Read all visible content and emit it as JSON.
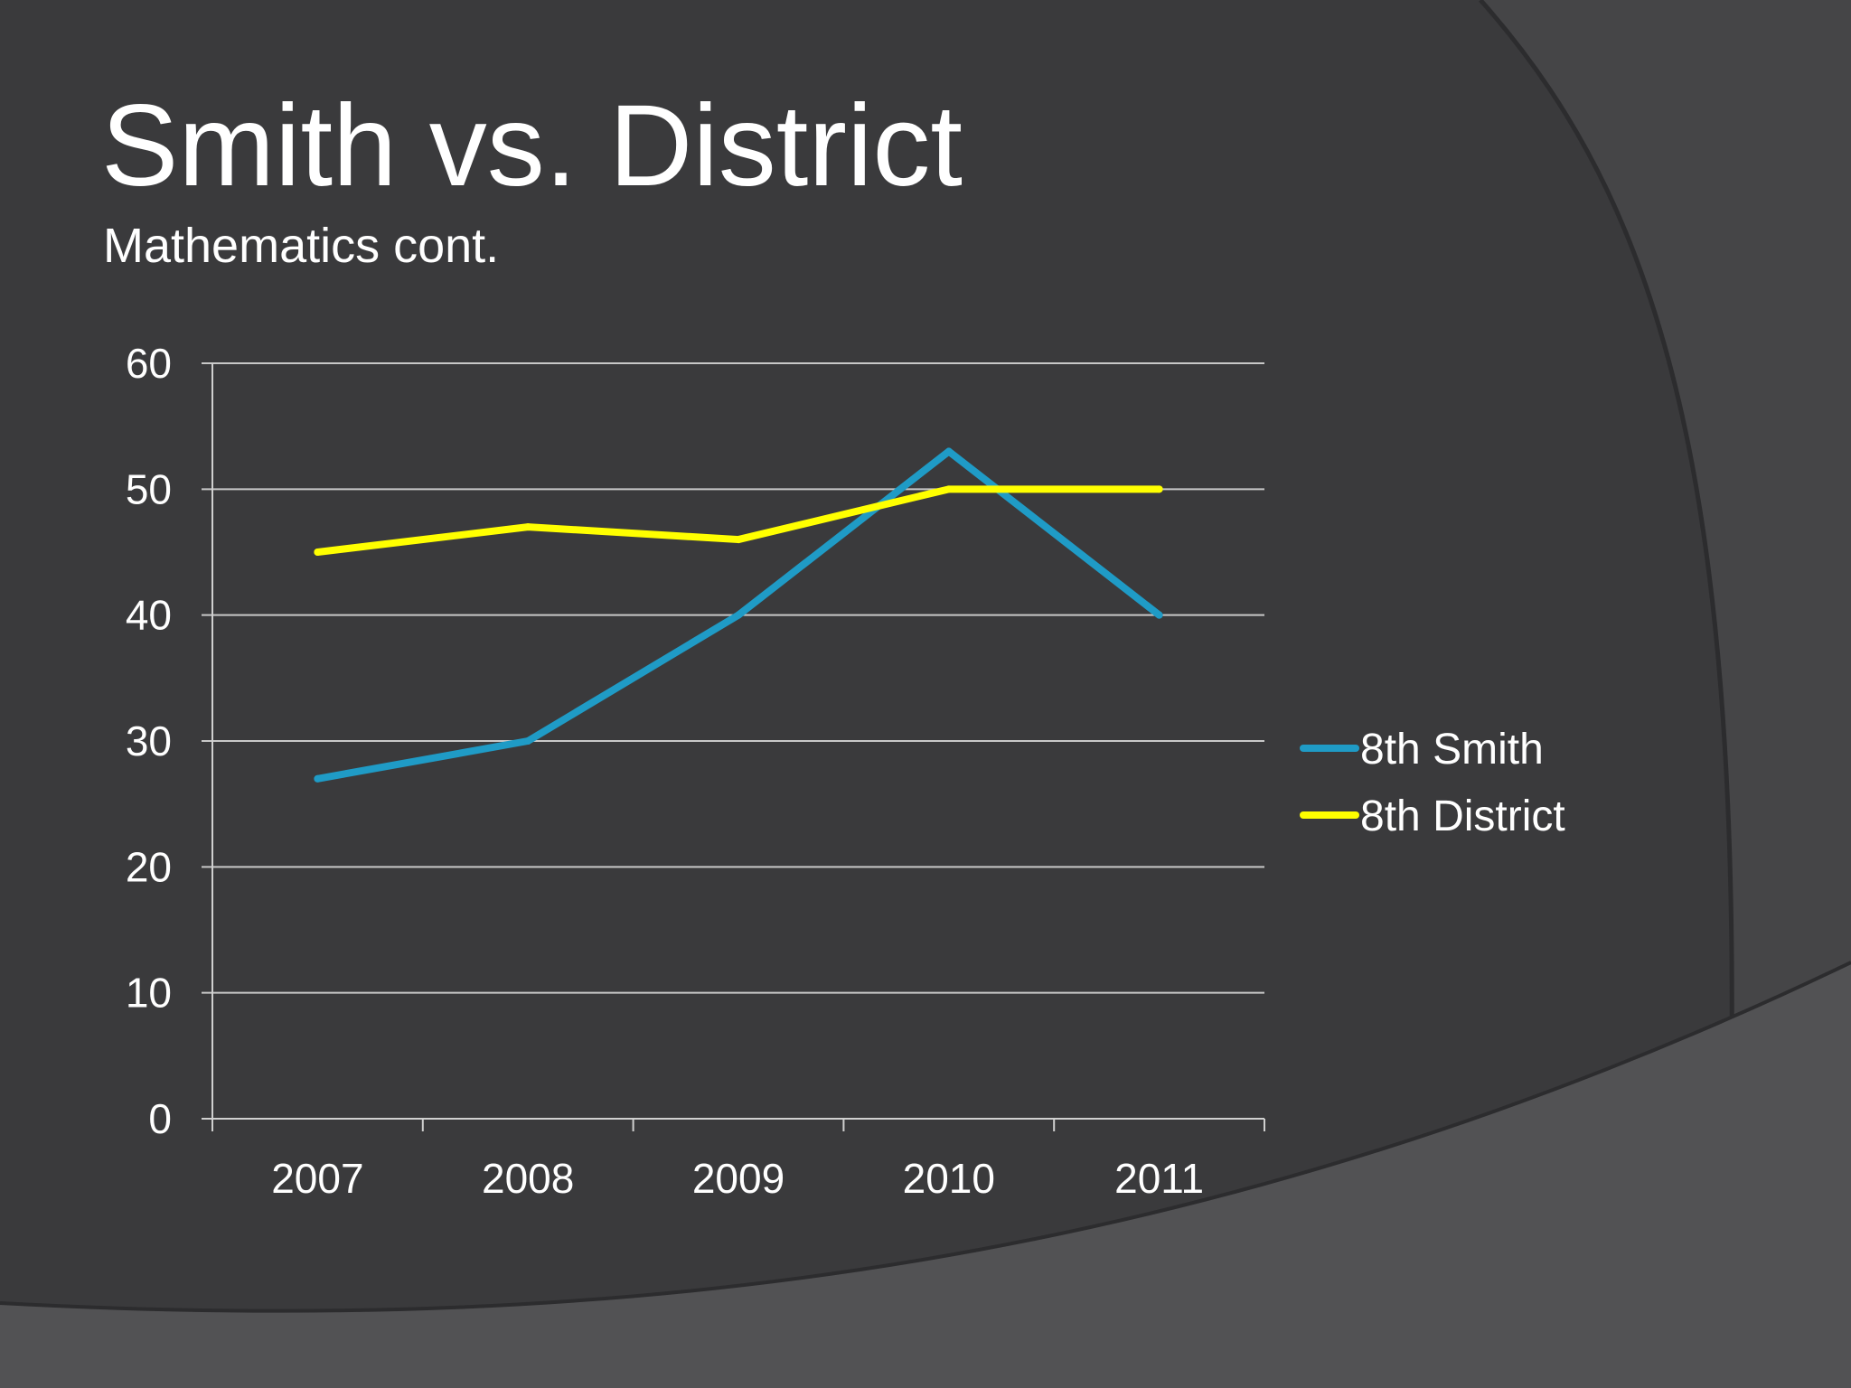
{
  "slide": {
    "title": "Smith vs. District",
    "subtitle": "Mathematics cont."
  },
  "colors": {
    "background": "#3a3a3c",
    "gridline": "#c8c8c8",
    "axis": "#d0d0d0"
  },
  "chart_data": {
    "type": "line",
    "categories": [
      "2007",
      "2008",
      "2009",
      "2010",
      "2011"
    ],
    "ylim": [
      0,
      60
    ],
    "yticks": [
      0,
      10,
      20,
      30,
      40,
      50,
      60
    ],
    "grid": true,
    "legend_position": "right",
    "series": [
      {
        "name": "8th Smith",
        "values": [
          27,
          30,
          40,
          53,
          40
        ],
        "color": "#1f9bc6"
      },
      {
        "name": "8th District",
        "values": [
          45,
          47,
          46,
          50,
          50
        ],
        "color": "#ffff00"
      }
    ]
  }
}
